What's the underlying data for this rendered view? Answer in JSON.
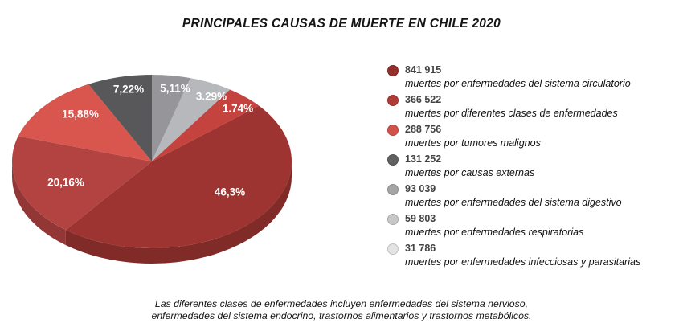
{
  "title": "PRINCIPALES CAUSAS DE MUERTE EN CHILE 2020",
  "chart_data": {
    "type": "pie",
    "style": "3d-ellipse",
    "title": "PRINCIPALES CAUSAS DE MUERTE EN CHILE 2020",
    "legend_position": "right",
    "slices": [
      {
        "name": "sistema-circulatorio",
        "value": 841915,
        "value_text": "841 915",
        "label": "muertes por enfermedades del sistema circulatorio",
        "pct": 46.3,
        "pct_label": "46,3%",
        "color": "#9d3431",
        "legend_color": "#942e2b",
        "start_deg": 50,
        "end_deg": 218
      },
      {
        "name": "diferentes-clases-enfermedades",
        "value": 366522,
        "value_text": "366 522",
        "label": "muertes por diferentes clases de enfermedades",
        "pct": 20.16,
        "pct_label": "20,16%",
        "color": "#b24341",
        "legend_color": "#af3b37",
        "start_deg": 218,
        "end_deg": 287
      },
      {
        "name": "tumores-malignos",
        "value": 288756,
        "value_text": "288 756",
        "label": "muertes por tumores malignos",
        "pct": 15.88,
        "pct_label": "15,88%",
        "color": "#d8564e",
        "legend_color": "#d0524b",
        "start_deg": 287,
        "end_deg": 333
      },
      {
        "name": "causas-externas",
        "value": 131252,
        "value_text": "131 252",
        "label": "muertes por causas externas",
        "pct": 7.22,
        "pct_label": "7,22%",
        "color": "#58585b",
        "legend_color": "#616161",
        "start_deg": 333,
        "end_deg": 360
      },
      {
        "name": "sistema-digestivo",
        "value": 93039,
        "value_text": "93 039",
        "label": "muertes por enfermedades del sistema digestivo",
        "pct": 5.11,
        "pct_label": "5,11%",
        "color": "#96969a",
        "legend_color": "#a5a5a5",
        "start_deg": 0,
        "end_deg": 16
      },
      {
        "name": "enfermedades-respiratorias",
        "value": 59803,
        "value_text": "59 803",
        "label": "muertes por enfermedades respiratorias",
        "pct": 3.29,
        "pct_label": "3.29%",
        "color": "#b7b8bc",
        "legend_color": "#c7c7c7",
        "start_deg": 16,
        "end_deg": 34
      },
      {
        "name": "infecciosas-parasitarias",
        "value": 31786,
        "value_text": "31 786",
        "label": "muertes por enfermedades infecciosas y parasitarias",
        "pct": 1.74,
        "pct_label": "1.74%",
        "color": "#c4433e",
        "legend_color": "#e4e4e4",
        "start_deg": 34,
        "end_deg": 50
      }
    ]
  },
  "footnote": {
    "line1": "Las diferentes clases de enfermedades incluyen enfermedades del sistema nervioso,",
    "line2": "enfermedades del sistema endocrino, trastornos alimentarios y trastornos metabólicos."
  }
}
